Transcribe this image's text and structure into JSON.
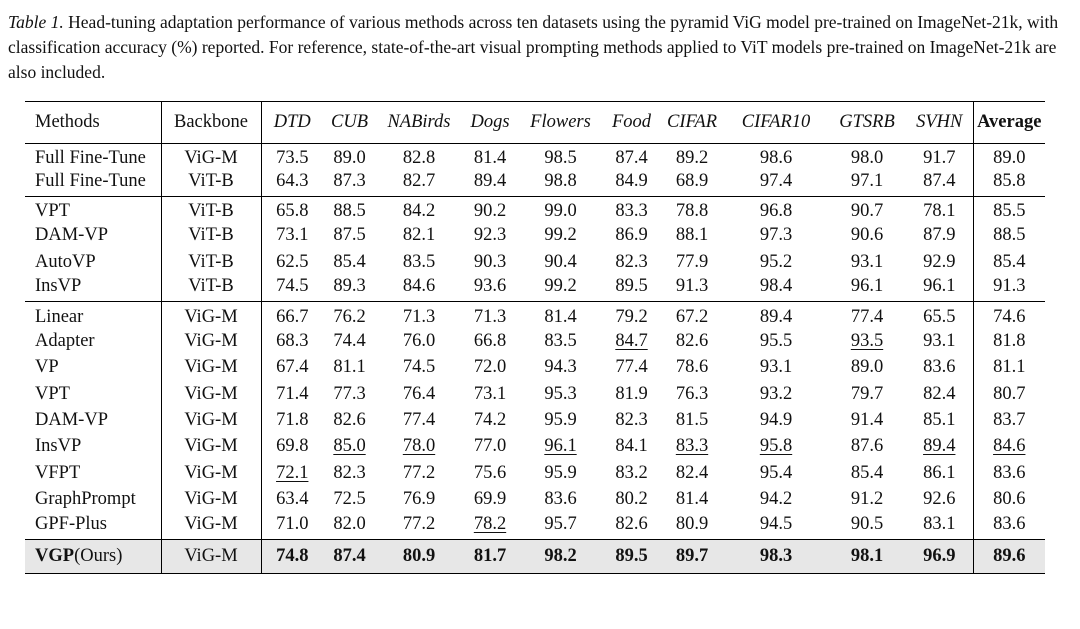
{
  "caption": {
    "label": "Table 1.",
    "text": " Head-tuning adaptation performance of various methods across ten datasets using the pyramid ViG model pre-trained on ImageNet-21k, with classification accuracy (%) reported. For reference, state-of-the-art visual prompting methods applied to ViT models pre-trained on ImageNet-21k are also included."
  },
  "header": {
    "methods": "Methods",
    "backbone": "Backbone",
    "datasets": [
      "DTD",
      "CUB",
      "NABirds",
      "Dogs",
      "Flowers",
      "Food",
      "CIFAR",
      "CIFAR10",
      "GTSRB",
      "SVHN"
    ],
    "average": "Average"
  },
  "groups": [
    {
      "rows": [
        {
          "method": "Full Fine-Tune",
          "backbone": "ViG-M",
          "values": [
            "73.5",
            "89.0",
            "82.8",
            "81.4",
            "98.5",
            "87.4",
            "89.2",
            "98.6",
            "98.0",
            "91.7"
          ],
          "avg": "89.0",
          "underline": []
        },
        {
          "method": "Full Fine-Tune",
          "backbone": "ViT-B",
          "values": [
            "64.3",
            "87.3",
            "82.7",
            "89.4",
            "98.8",
            "84.9",
            "68.9",
            "97.4",
            "97.1",
            "87.4"
          ],
          "avg": "85.8",
          "underline": []
        }
      ]
    },
    {
      "rows": [
        {
          "method": "VPT",
          "backbone": "ViT-B",
          "values": [
            "65.8",
            "88.5",
            "84.2",
            "90.2",
            "99.0",
            "83.3",
            "78.8",
            "96.8",
            "90.7",
            "78.1"
          ],
          "avg": "85.5",
          "underline": []
        },
        {
          "method": "DAM-VP",
          "backbone": "ViT-B",
          "values": [
            "73.1",
            "87.5",
            "82.1",
            "92.3",
            "99.2",
            "86.9",
            "88.1",
            "97.3",
            "90.6",
            "87.9"
          ],
          "avg": "88.5",
          "underline": []
        },
        {
          "method": "AutoVP",
          "backbone": "ViT-B",
          "values": [
            "62.5",
            "85.4",
            "83.5",
            "90.3",
            "90.4",
            "82.3",
            "77.9",
            "95.2",
            "93.1",
            "92.9"
          ],
          "avg": "85.4",
          "underline": []
        },
        {
          "method": "InsVP",
          "backbone": "ViT-B",
          "values": [
            "74.5",
            "89.3",
            "84.6",
            "93.6",
            "99.2",
            "89.5",
            "91.3",
            "98.4",
            "96.1",
            "96.1"
          ],
          "avg": "91.3",
          "underline": []
        }
      ]
    },
    {
      "rows": [
        {
          "method": "Linear",
          "backbone": "ViG-M",
          "values": [
            "66.7",
            "76.2",
            "71.3",
            "71.3",
            "81.4",
            "79.2",
            "67.2",
            "89.4",
            "77.4",
            "65.5"
          ],
          "avg": "74.6",
          "underline": []
        },
        {
          "method": "Adapter",
          "backbone": "ViG-M",
          "values": [
            "68.3",
            "74.4",
            "76.0",
            "66.8",
            "83.5",
            "84.7",
            "82.6",
            "95.5",
            "93.5",
            "93.1"
          ],
          "avg": "81.8",
          "underline": [
            5,
            8
          ]
        },
        {
          "method": "VP",
          "backbone": "ViG-M",
          "values": [
            "67.4",
            "81.1",
            "74.5",
            "72.0",
            "94.3",
            "77.4",
            "78.6",
            "93.1",
            "89.0",
            "83.6"
          ],
          "avg": "81.1",
          "underline": []
        },
        {
          "method": "VPT",
          "backbone": "ViG-M",
          "values": [
            "71.4",
            "77.3",
            "76.4",
            "73.1",
            "95.3",
            "81.9",
            "76.3",
            "93.2",
            "79.7",
            "82.4"
          ],
          "avg": "80.7",
          "underline": []
        },
        {
          "method": "DAM-VP",
          "backbone": "ViG-M",
          "values": [
            "71.8",
            "82.6",
            "77.4",
            "74.2",
            "95.9",
            "82.3",
            "81.5",
            "94.9",
            "91.4",
            "85.1"
          ],
          "avg": "83.7",
          "underline": []
        },
        {
          "method": "InsVP",
          "backbone": "ViG-M",
          "values": [
            "69.8",
            "85.0",
            "78.0",
            "77.0",
            "96.1",
            "84.1",
            "83.3",
            "95.8",
            "87.6",
            "89.4"
          ],
          "avg": "84.6",
          "underline": [
            1,
            2,
            4,
            6,
            7,
            9,
            10
          ]
        },
        {
          "method": "VFPT",
          "backbone": "ViG-M",
          "values": [
            "72.1",
            "82.3",
            "77.2",
            "75.6",
            "95.9",
            "83.2",
            "82.4",
            "95.4",
            "85.4",
            "86.1"
          ],
          "avg": "83.6",
          "underline": [
            0
          ]
        },
        {
          "method": "GraphPrompt",
          "backbone": "ViG-M",
          "values": [
            "63.4",
            "72.5",
            "76.9",
            "69.9",
            "83.6",
            "80.2",
            "81.4",
            "94.2",
            "91.2",
            "92.6"
          ],
          "avg": "80.6",
          "underline": []
        },
        {
          "method": "GPF-Plus",
          "backbone": "ViG-M",
          "values": [
            "71.0",
            "82.0",
            "77.2",
            "78.2",
            "95.7",
            "82.6",
            "80.9",
            "94.5",
            "90.5",
            "83.1"
          ],
          "avg": "83.6",
          "underline": [
            3
          ]
        }
      ]
    }
  ],
  "ours": {
    "method_bold": "VGP",
    "method_suffix": "(Ours)",
    "backbone": "ViG-M",
    "values": [
      "74.8",
      "87.4",
      "80.9",
      "81.7",
      "98.2",
      "89.5",
      "89.7",
      "98.3",
      "98.1",
      "96.9"
    ],
    "avg": "89.6"
  }
}
